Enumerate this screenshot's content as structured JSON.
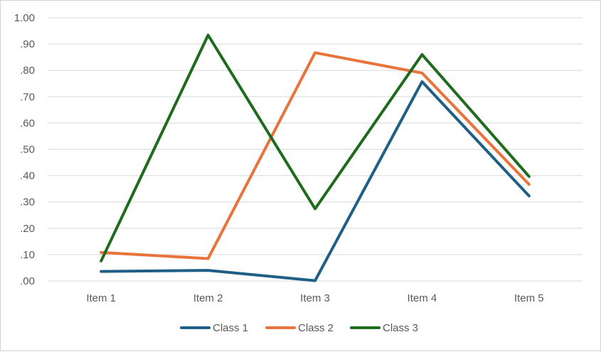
{
  "chart_data": {
    "type": "line",
    "categories": [
      "Item 1",
      "Item 2",
      "Item 3",
      "Item 4",
      "Item 5"
    ],
    "series": [
      {
        "name": "Class 1",
        "color": "#1f5f86",
        "values": [
          0.036,
          0.04,
          0.001,
          0.757,
          0.323
        ]
      },
      {
        "name": "Class 2",
        "color": "#e8743b",
        "values": [
          0.108,
          0.085,
          0.867,
          0.79,
          0.367
        ]
      },
      {
        "name": "Class 3",
        "color": "#1e6b1e",
        "values": [
          0.076,
          0.934,
          0.274,
          0.86,
          0.397
        ]
      }
    ],
    "ylim": [
      0,
      1
    ],
    "yticks": [
      0,
      0.1,
      0.2,
      0.3,
      0.4,
      0.5,
      0.6,
      0.7,
      0.8,
      0.9,
      1.0
    ],
    "ytick_labels": [
      ".00",
      ".10",
      ".20",
      ".30",
      ".40",
      ".50",
      ".60",
      ".70",
      ".80",
      ".90",
      "1.00"
    ],
    "grid": true,
    "legend": "bottom",
    "gridline_color": "#d9d9d9"
  }
}
